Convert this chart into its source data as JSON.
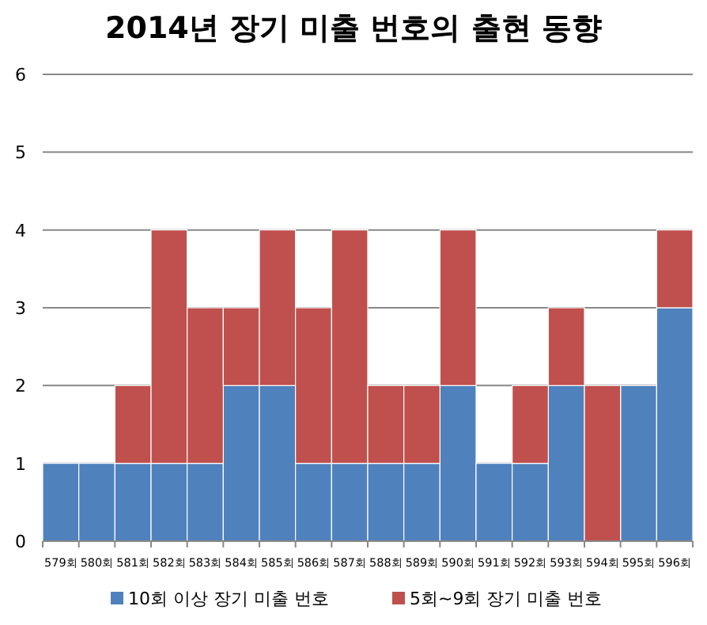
{
  "chart_data": {
    "type": "bar",
    "stacked": true,
    "title": "2014년 장기 미출 번호의 출현 동향",
    "categories": [
      "579회",
      "580회",
      "581회",
      "582회",
      "583회",
      "584회",
      "585회",
      "586회",
      "587회",
      "588회",
      "589회",
      "590회",
      "591회",
      "592회",
      "593회",
      "594회",
      "595회",
      "596회"
    ],
    "series": [
      {
        "name": "10회 이상 장기 미출 번호",
        "color": "#4f81bd",
        "values": [
          1,
          1,
          1,
          1,
          1,
          2,
          2,
          1,
          1,
          1,
          1,
          2,
          1,
          1,
          2,
          0,
          2,
          3
        ]
      },
      {
        "name": "5회~9회 장기 미출 번호",
        "color": "#c0504d",
        "values": [
          0,
          0,
          1,
          3,
          2,
          1,
          2,
          2,
          3,
          1,
          1,
          2,
          0,
          1,
          1,
          2,
          0,
          1
        ]
      }
    ],
    "ylim": [
      0,
      6
    ],
    "yticks": [
      0,
      1,
      2,
      3,
      4,
      5,
      6
    ],
    "grid": "y",
    "legend": "bottom"
  }
}
